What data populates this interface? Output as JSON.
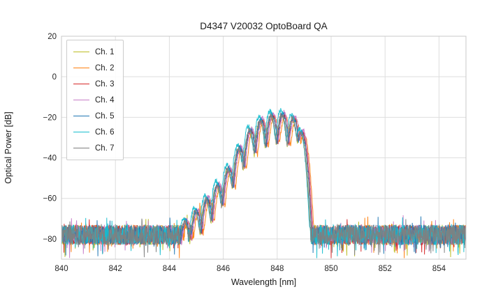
{
  "chart_data": {
    "type": "line",
    "title": "D4347 V20032 OptoBoard QA",
    "xlabel": "Wavelength [nm]",
    "ylabel": "Optical Power [dB]",
    "xlim": [
      840,
      855
    ],
    "ylim": [
      -90,
      20
    ],
    "xticks": [
      840,
      842,
      844,
      846,
      848,
      850,
      852,
      854
    ],
    "yticks": [
      20,
      0,
      -20,
      -40,
      -60,
      -80
    ],
    "grid": true,
    "grid_color": "#dedede",
    "spine_color": "#c8c8c8",
    "tick_label_color": "#262626",
    "legend_position": "upper-left",
    "noise_floor_db": -78,
    "noise_spread_db": 10,
    "mode_width_nm": 0.053,
    "spectral_modes": [
      [
        844.6,
        -71
      ],
      [
        845.0,
        -66
      ],
      [
        845.4,
        -60
      ],
      [
        845.8,
        -53
      ],
      [
        846.2,
        -45
      ],
      [
        846.6,
        -35
      ],
      [
        847.0,
        -26
      ],
      [
        847.4,
        -21
      ],
      [
        847.8,
        -18.5
      ],
      [
        848.2,
        -18
      ],
      [
        848.6,
        -20
      ],
      [
        848.9,
        -27
      ]
    ],
    "series": [
      {
        "name": "Ch. 1",
        "color": "#bcbd22",
        "shift_nm": -0.03,
        "delta_db": -1.5,
        "seed": 101
      },
      {
        "name": "Ch. 2",
        "color": "#ff7f0e",
        "shift_nm": 0.09,
        "delta_db": -1.0,
        "seed": 202
      },
      {
        "name": "Ch. 3",
        "color": "#d62728",
        "shift_nm": 0.03,
        "delta_db": -0.5,
        "seed": 303
      },
      {
        "name": "Ch. 4",
        "color": "#c77cc7",
        "shift_nm": 0.05,
        "delta_db": 0.5,
        "seed": 404
      },
      {
        "name": "Ch. 5",
        "color": "#1f77b4",
        "shift_nm": 0.0,
        "delta_db": 0.0,
        "seed": 505
      },
      {
        "name": "Ch. 6",
        "color": "#17becf",
        "shift_nm": -0.07,
        "delta_db": 1.5,
        "seed": 606
      },
      {
        "name": "Ch. 7",
        "color": "#7f7f7f",
        "shift_nm": -0.04,
        "delta_db": -0.5,
        "seed": 707
      }
    ]
  }
}
